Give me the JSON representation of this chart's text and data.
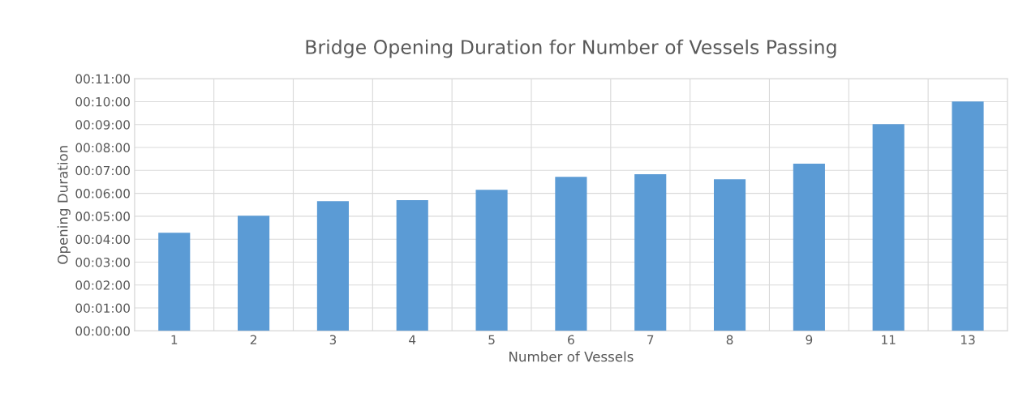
{
  "chart_data": {
    "type": "bar",
    "title": "Bridge Opening Duration for Number of Vessels Passing",
    "xlabel": "Number of Vessels",
    "ylabel": "Opening Duration",
    "categories": [
      "1",
      "2",
      "3",
      "4",
      "5",
      "6",
      "7",
      "8",
      "9",
      "11",
      "13"
    ],
    "values": [
      4.28,
      5.02,
      5.66,
      5.7,
      6.15,
      6.72,
      6.83,
      6.61,
      7.29,
      9.02,
      10.01
    ],
    "color": "#5b9bd5",
    "ylim": [
      0,
      11
    ],
    "yticks": [
      {
        "value": 0,
        "label": "00:00:00"
      },
      {
        "value": 1,
        "label": "00:01:00"
      },
      {
        "value": 2,
        "label": "00:02:00"
      },
      {
        "value": 3,
        "label": "00:03:00"
      },
      {
        "value": 4,
        "label": "00:04:00"
      },
      {
        "value": 5,
        "label": "00:05:00"
      },
      {
        "value": 6,
        "label": "00:06:00"
      },
      {
        "value": 7,
        "label": "00:07:00"
      },
      {
        "value": 8,
        "label": "00:08:00"
      },
      {
        "value": 9,
        "label": "00:09:00"
      },
      {
        "value": 10,
        "label": "00:10:00"
      },
      {
        "value": 11,
        "label": "00:11:00"
      }
    ],
    "grid": true
  }
}
